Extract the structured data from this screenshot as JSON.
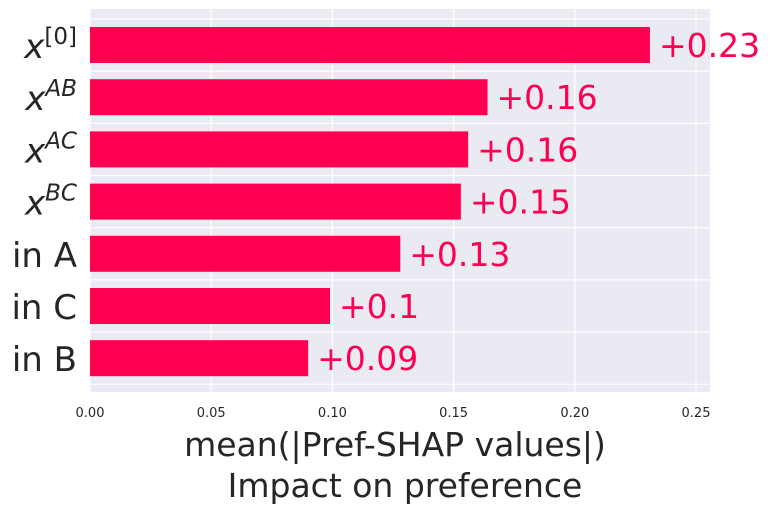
{
  "chart_data": {
    "type": "bar",
    "orientation": "horizontal",
    "categories": [
      {
        "base": "x",
        "sup": "[0]",
        "italic": true
      },
      {
        "base": "x",
        "sup": "AB",
        "italic": true
      },
      {
        "base": "x",
        "sup": "AC",
        "italic": true
      },
      {
        "base": "x",
        "sup": "BC",
        "italic": true
      },
      {
        "base": "in A",
        "sup": "",
        "italic": false
      },
      {
        "base": "in C",
        "sup": "",
        "italic": false
      },
      {
        "base": "in B",
        "sup": "",
        "italic": false
      }
    ],
    "values": [
      0.231,
      0.164,
      0.156,
      0.153,
      0.128,
      0.099,
      0.09
    ],
    "value_labels": [
      "+0.23",
      "+0.16",
      "+0.16",
      "+0.15",
      "+0.13",
      "+0.1",
      "+0.09"
    ],
    "xticks": [
      "0.00",
      "0.05",
      "0.10",
      "0.15",
      "0.20",
      "0.25"
    ],
    "xlim": [
      0,
      0.255
    ],
    "xlabel": [
      "mean(|Pref-SHAP values|)",
      "Impact on preference"
    ],
    "ylabel": "",
    "title": "",
    "grid": true,
    "colors": {
      "bar": "#ff0051",
      "value_label": "#ff0051",
      "plot_background": "#eaeaf2",
      "grid": "#ffffff",
      "text": "#262626"
    }
  }
}
